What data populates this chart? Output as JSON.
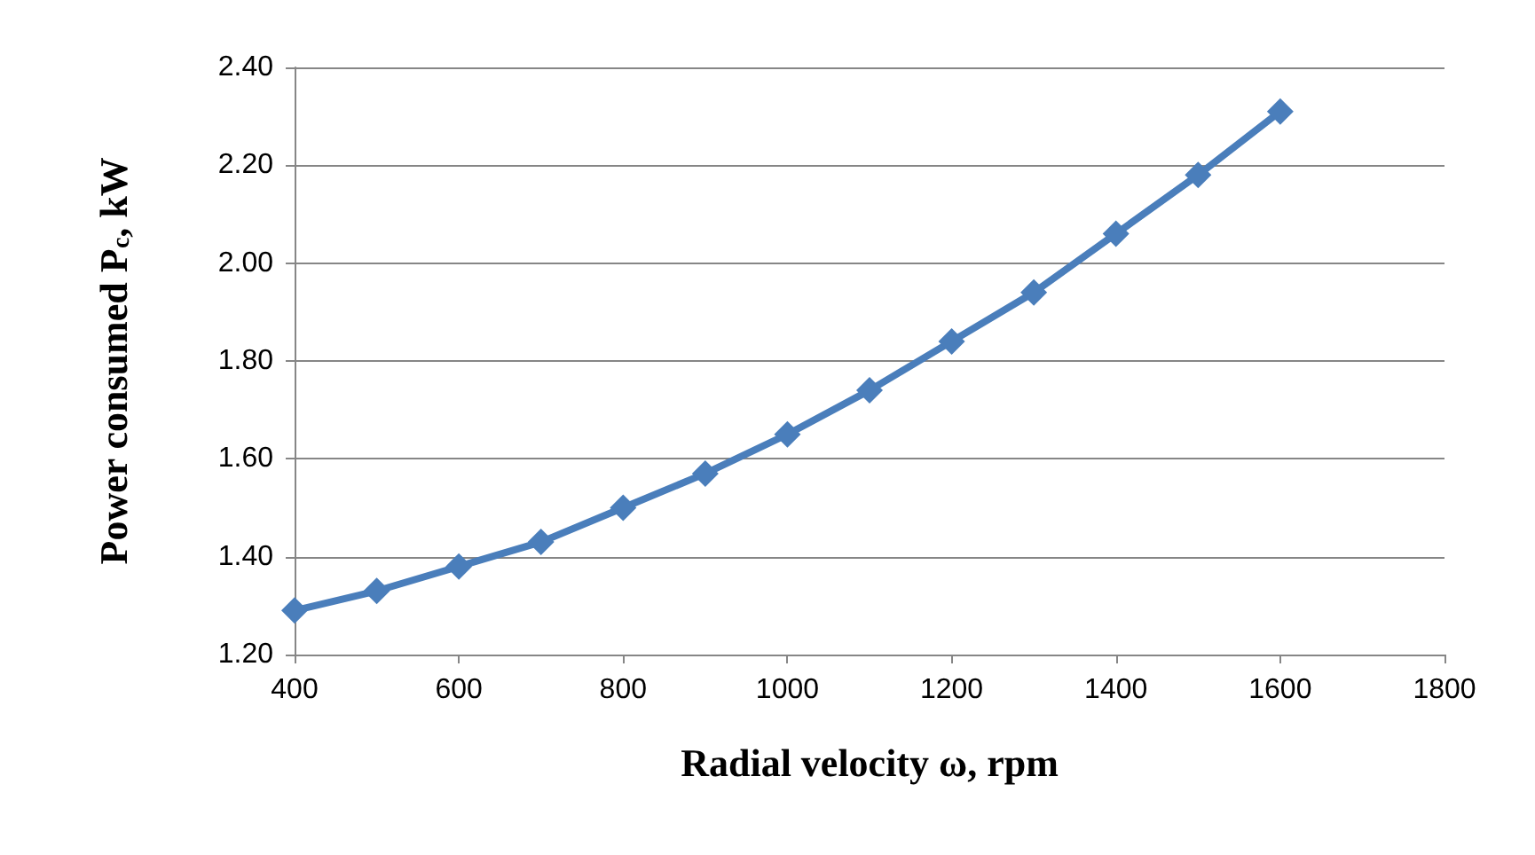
{
  "chart_data": {
    "type": "line",
    "xlabel": "Radial velocity ω, rpm",
    "ylabel": "Power consumed P$_{c}$, kW",
    "x": [
      400,
      500,
      600,
      700,
      800,
      900,
      1000,
      1100,
      1200,
      1300,
      1400,
      1500,
      1600
    ],
    "series": [
      {
        "color": "#4a7ebb",
        "values": [
          1.29,
          1.33,
          1.38,
          1.43,
          1.5,
          1.57,
          1.65,
          1.74,
          1.84,
          1.94,
          2.06,
          2.18,
          2.31
        ]
      }
    ],
    "xlim": [
      400,
      1800
    ],
    "xticks": [
      400,
      600,
      800,
      1000,
      1200,
      1400,
      1600,
      1800
    ],
    "ylim": [
      1.2,
      2.4
    ],
    "yticks": [
      {
        "value": 1.2,
        "label": "1.20"
      },
      {
        "value": 1.4,
        "label": "1.40"
      },
      {
        "value": 1.6,
        "label": "1.60"
      },
      {
        "value": 1.8,
        "label": "1.80"
      },
      {
        "value": 2.0,
        "label": "2.00"
      },
      {
        "value": 2.2,
        "label": "2.20"
      },
      {
        "value": 2.4,
        "label": "2.40"
      }
    ],
    "grid": "y",
    "marker": "diamond",
    "line_style": "solid"
  }
}
